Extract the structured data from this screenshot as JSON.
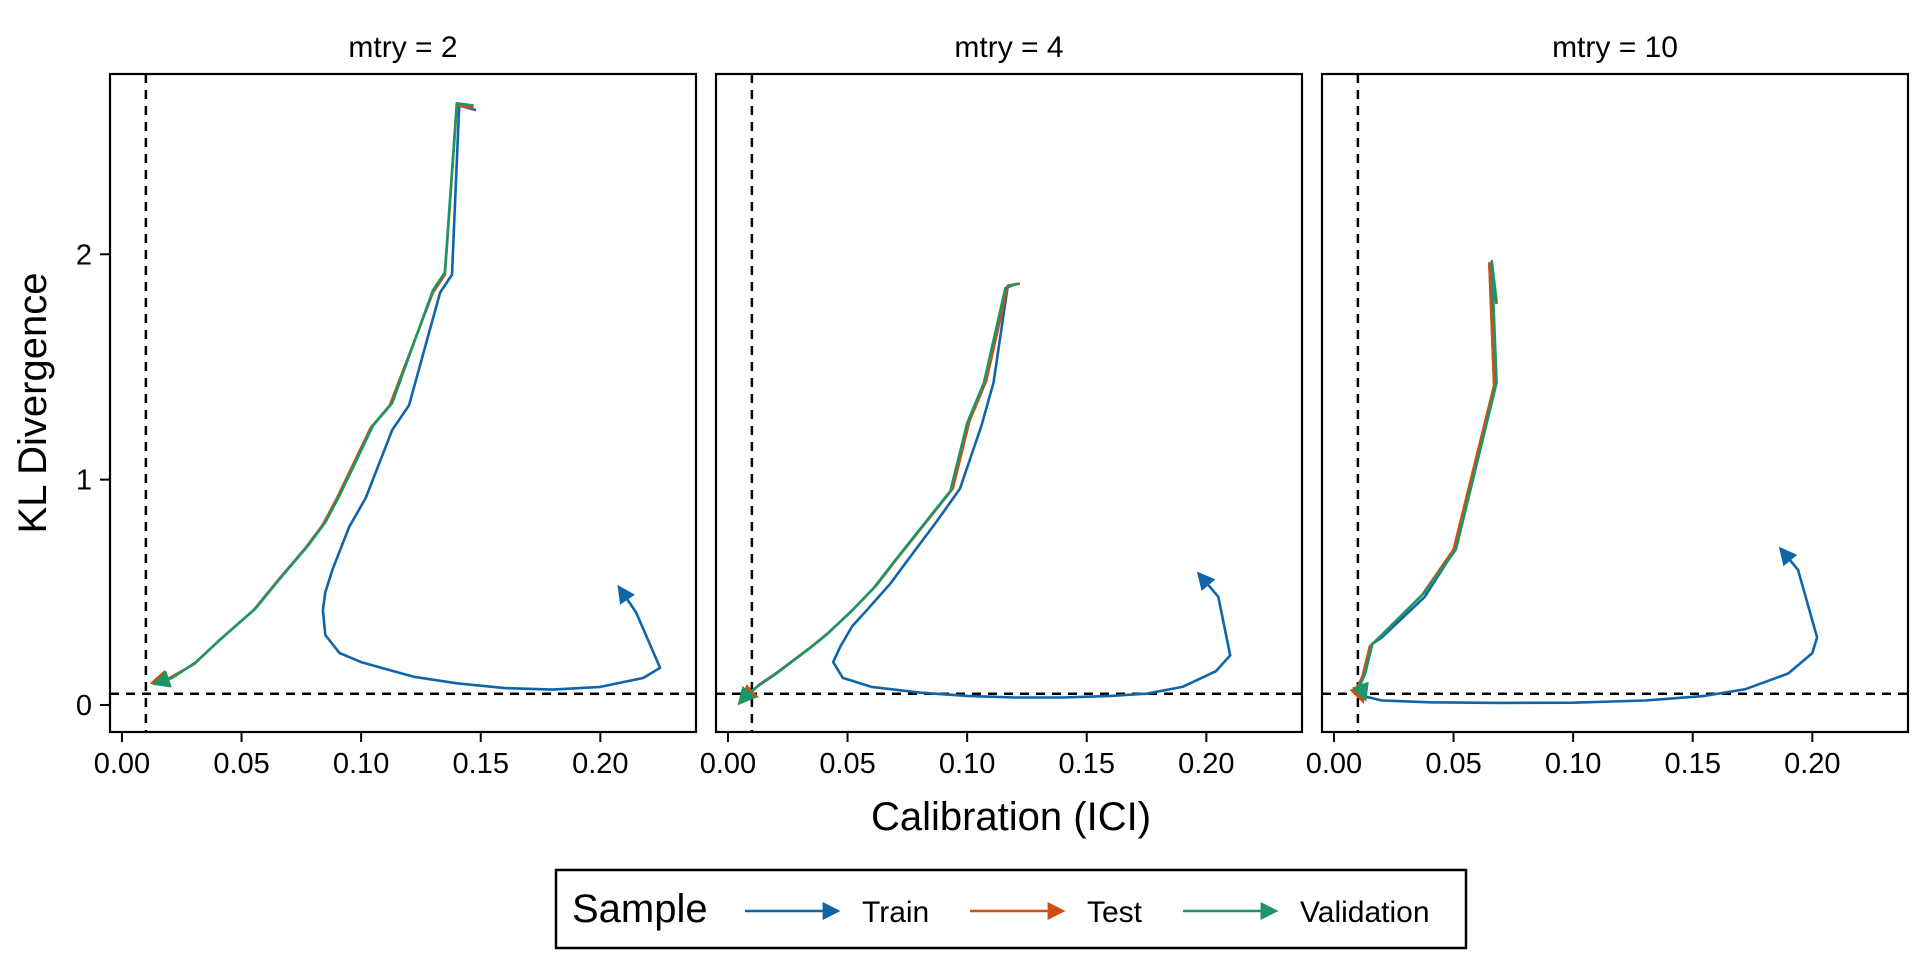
{
  "chart_data": {
    "type": "line",
    "xlabel": "Calibration (ICI)",
    "ylabel": "KL Divergence",
    "xlim": [
      -0.005,
      0.24
    ],
    "ylim": [
      -0.12,
      2.8
    ],
    "x_ticks": [
      0.0,
      0.05,
      0.1,
      0.15,
      0.2
    ],
    "x_tick_labels": [
      "0.00",
      "0.05",
      "0.10",
      "0.15",
      "0.20"
    ],
    "y_ticks": [
      0,
      1,
      2
    ],
    "y_tick_labels": [
      "0",
      "1",
      "2"
    ],
    "reference_lines": {
      "x": 0.01,
      "y": 0.05
    },
    "legend": {
      "title": "Sample",
      "position": "bottom",
      "entries": [
        "Train",
        "Test",
        "Validation"
      ]
    },
    "colors": {
      "Train": "#1065a8",
      "Test": "#cf4f10",
      "Validation": "#1a9668"
    },
    "panels": [
      {
        "title": "mtry = 2",
        "series": [
          {
            "name": "Train",
            "points": [
              [
                0.148,
                2.64
              ],
              [
                0.141,
                2.66
              ],
              [
                0.138,
                1.91
              ],
              [
                0.133,
                1.83
              ],
              [
                0.12,
                1.33
              ],
              [
                0.113,
                1.22
              ],
              [
                0.102,
                0.92
              ],
              [
                0.095,
                0.79
              ],
              [
                0.088,
                0.6
              ],
              [
                0.085,
                0.5
              ],
              [
                0.084,
                0.42
              ],
              [
                0.085,
                0.31
              ],
              [
                0.091,
                0.23
              ],
              [
                0.1,
                0.19
              ],
              [
                0.11,
                0.16
              ],
              [
                0.122,
                0.125
              ],
              [
                0.14,
                0.096
              ],
              [
                0.16,
                0.075
              ],
              [
                0.18,
                0.068
              ],
              [
                0.2,
                0.08
              ],
              [
                0.218,
                0.12
              ],
              [
                0.225,
                0.165
              ],
              [
                0.215,
                0.41
              ],
              [
                0.208,
                0.52
              ]
            ]
          },
          {
            "name": "Test",
            "points": [
              [
                0.147,
                2.65
              ],
              [
                0.14,
                2.66
              ],
              [
                0.135,
                1.91
              ],
              [
                0.13,
                1.83
              ],
              [
                0.112,
                1.33
              ],
              [
                0.104,
                1.23
              ],
              [
                0.09,
                0.92
              ],
              [
                0.084,
                0.8
              ],
              [
                0.077,
                0.7
              ],
              [
                0.065,
                0.55
              ],
              [
                0.055,
                0.42
              ],
              [
                0.04,
                0.28
              ],
              [
                0.03,
                0.18
              ],
              [
                0.02,
                0.12
              ],
              [
                0.013,
                0.1
              ]
            ]
          },
          {
            "name": "Validation",
            "points": [
              [
                0.147,
                2.66
              ],
              [
                0.14,
                2.67
              ],
              [
                0.135,
                1.92
              ],
              [
                0.13,
                1.84
              ],
              [
                0.113,
                1.34
              ],
              [
                0.105,
                1.24
              ],
              [
                0.091,
                0.93
              ],
              [
                0.085,
                0.81
              ],
              [
                0.078,
                0.71
              ],
              [
                0.066,
                0.56
              ],
              [
                0.056,
                0.43
              ],
              [
                0.041,
                0.29
              ],
              [
                0.031,
                0.19
              ],
              [
                0.021,
                0.12
              ],
              [
                0.014,
                0.095
              ]
            ]
          }
        ]
      },
      {
        "title": "mtry = 4",
        "series": [
          {
            "name": "Train",
            "points": [
              [
                0.122,
                1.87
              ],
              [
                0.117,
                1.86
              ],
              [
                0.111,
                1.43
              ],
              [
                0.106,
                1.24
              ],
              [
                0.097,
                0.96
              ],
              [
                0.087,
                0.81
              ],
              [
                0.075,
                0.64
              ],
              [
                0.068,
                0.54
              ],
              [
                0.058,
                0.42
              ],
              [
                0.052,
                0.35
              ],
              [
                0.047,
                0.26
              ],
              [
                0.044,
                0.19
              ],
              [
                0.048,
                0.12
              ],
              [
                0.06,
                0.08
              ],
              [
                0.08,
                0.055
              ],
              [
                0.1,
                0.04
              ],
              [
                0.12,
                0.033
              ],
              [
                0.14,
                0.033
              ],
              [
                0.16,
                0.04
              ],
              [
                0.175,
                0.05
              ],
              [
                0.19,
                0.08
              ],
              [
                0.204,
                0.15
              ],
              [
                0.21,
                0.22
              ],
              [
                0.205,
                0.48
              ],
              [
                0.197,
                0.58
              ]
            ]
          },
          {
            "name": "Test",
            "points": [
              [
                0.122,
                1.87
              ],
              [
                0.117,
                1.86
              ],
              [
                0.108,
                1.44
              ],
              [
                0.101,
                1.26
              ],
              [
                0.094,
                0.96
              ],
              [
                0.082,
                0.8
              ],
              [
                0.07,
                0.64
              ],
              [
                0.062,
                0.53
              ],
              [
                0.052,
                0.42
              ],
              [
                0.042,
                0.32
              ],
              [
                0.035,
                0.26
              ],
              [
                0.025,
                0.18
              ],
              [
                0.02,
                0.14
              ],
              [
                0.013,
                0.09
              ],
              [
                0.008,
                0.04
              ],
              [
                0.006,
                0.02
              ]
            ]
          },
          {
            "name": "Validation",
            "points": [
              [
                0.121,
                1.87
              ],
              [
                0.116,
                1.85
              ],
              [
                0.107,
                1.43
              ],
              [
                0.1,
                1.25
              ],
              [
                0.093,
                0.95
              ],
              [
                0.081,
                0.79
              ],
              [
                0.069,
                0.63
              ],
              [
                0.061,
                0.52
              ],
              [
                0.051,
                0.41
              ],
              [
                0.041,
                0.31
              ],
              [
                0.034,
                0.25
              ],
              [
                0.024,
                0.17
              ],
              [
                0.019,
                0.13
              ],
              [
                0.012,
                0.08
              ],
              [
                0.007,
                0.035
              ],
              [
                0.005,
                0.01
              ]
            ]
          }
        ]
      },
      {
        "title": "mtry = 10",
        "series": [
          {
            "name": "Train",
            "points": [
              [
                0.068,
                1.78
              ],
              [
                0.065,
                1.96
              ],
              [
                0.067,
                1.41
              ],
              [
                0.05,
                0.68
              ],
              [
                0.038,
                0.48
              ],
              [
                0.02,
                0.3
              ],
              [
                0.016,
                0.27
              ],
              [
                0.013,
                0.14
              ],
              [
                0.011,
                0.09
              ],
              [
                0.012,
                0.04
              ],
              [
                0.02,
                0.02
              ],
              [
                0.04,
                0.012
              ],
              [
                0.07,
                0.009
              ],
              [
                0.1,
                0.01
              ],
              [
                0.13,
                0.02
              ],
              [
                0.155,
                0.04
              ],
              [
                0.172,
                0.07
              ],
              [
                0.19,
                0.14
              ],
              [
                0.2,
                0.23
              ],
              [
                0.202,
                0.3
              ],
              [
                0.194,
                0.6
              ],
              [
                0.187,
                0.69
              ]
            ]
          },
          {
            "name": "Test",
            "points": [
              [
                0.068,
                1.78
              ],
              [
                0.065,
                1.96
              ],
              [
                0.067,
                1.42
              ],
              [
                0.05,
                0.69
              ],
              [
                0.037,
                0.49
              ],
              [
                0.018,
                0.29
              ],
              [
                0.015,
                0.26
              ],
              [
                0.012,
                0.13
              ],
              [
                0.01,
                0.08
              ],
              [
                0.012,
                0.02
              ]
            ]
          },
          {
            "name": "Validation",
            "points": [
              [
                0.068,
                1.79
              ],
              [
                0.066,
                1.97
              ],
              [
                0.068,
                1.43
              ],
              [
                0.051,
                0.69
              ],
              [
                0.038,
                0.5
              ],
              [
                0.019,
                0.3
              ],
              [
                0.016,
                0.27
              ],
              [
                0.013,
                0.14
              ],
              [
                0.011,
                0.09
              ],
              [
                0.013,
                0.03
              ]
            ]
          }
        ]
      }
    ]
  }
}
